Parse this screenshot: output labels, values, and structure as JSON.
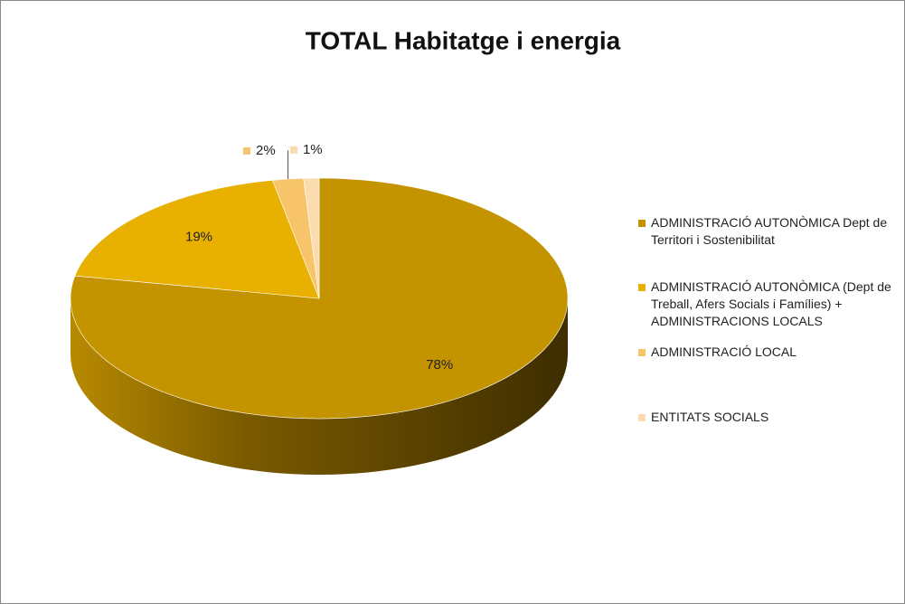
{
  "chart_data": {
    "type": "pie3d",
    "title": "TOTAL Habitatge i energia",
    "categories": [
      "ADMINISTRACIÓ AUTONÒMICA Dept de Territori i Sostenibilitat",
      "ADMINISTRACIÓ AUTONÒMICA (Dept de Treball, Afers Socials i Famílies) + ADMINISTRACIONS LOCALS",
      "ADMINISTRACIÓ LOCAL",
      "ENTITATS SOCIALS"
    ],
    "values": [
      78,
      19,
      2,
      1
    ],
    "value_labels": [
      "78%",
      "19%",
      "2%",
      "1%"
    ],
    "colors": [
      "#c49300",
      "#e8b000",
      "#f8c46a",
      "#fbdcae"
    ],
    "legend": "right"
  }
}
